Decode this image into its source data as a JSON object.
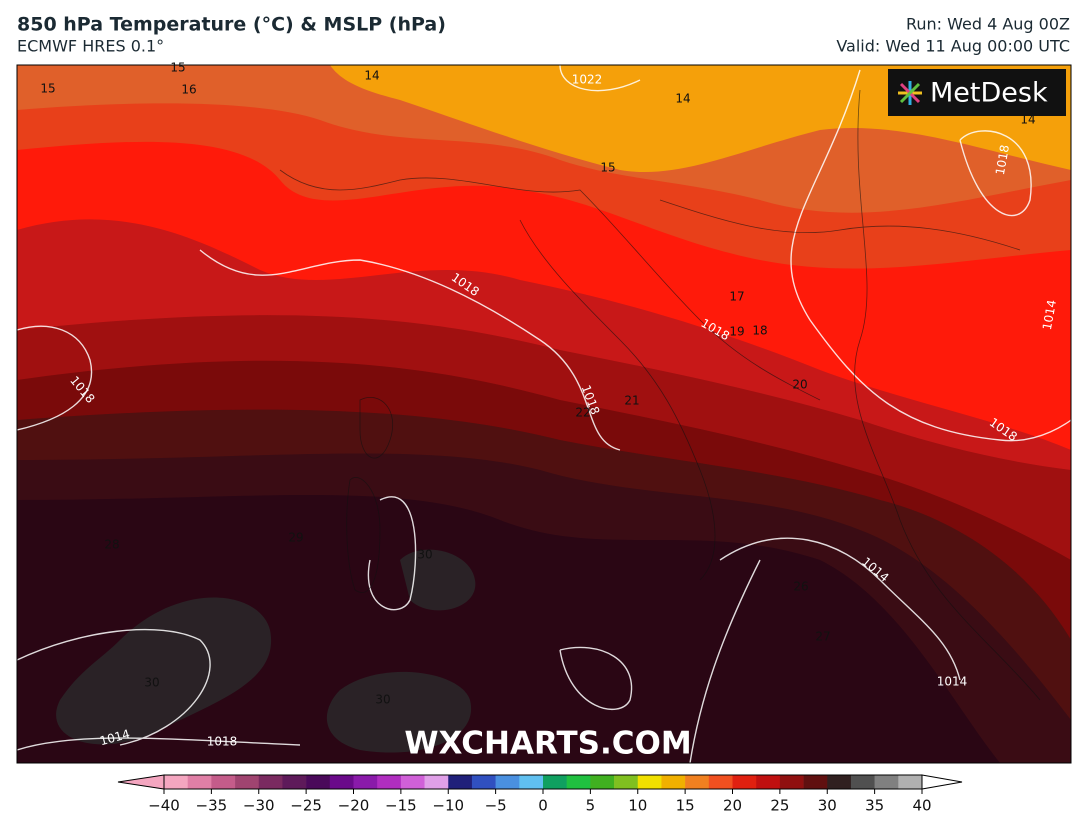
{
  "header": {
    "title": "850 hPa Temperature (°C) & MSLP (hPa)",
    "subtitle": "ECMWF HRES 0.1°",
    "run": "Run: Wed 4 Aug 00Z",
    "valid": "Valid: Wed 11 Aug 00:00 UTC"
  },
  "logo": "MetDesk",
  "watermark": "WXCHARTS.COM",
  "map": {
    "isobar_labels": [
      "1022",
      "1018",
      "1018",
      "1018",
      "1018",
      "1018",
      "1014",
      "1014",
      "1014",
      "1014",
      "1018",
      "1018"
    ],
    "isotherm_labels": [
      "15",
      "16",
      "15",
      "14",
      "14",
      "14",
      "15",
      "17",
      "19",
      "18",
      "21",
      "22",
      "20",
      "28",
      "29",
      "30",
      "26",
      "27",
      "30",
      "30"
    ]
  },
  "colorbar": {
    "min": -40,
    "max": 40,
    "colors": [
      "#f4a6c0",
      "#e07fa6",
      "#c45c8a",
      "#a04470",
      "#7a2a60",
      "#5e1a5a",
      "#4a0a5a",
      "#6a0a8a",
      "#8a1aaa",
      "#b02ec0",
      "#d060d8",
      "#e0a0e8",
      "#20207a",
      "#3050c0",
      "#4a90e0",
      "#60c0f0",
      "#10a060",
      "#20c040",
      "#40b020",
      "#80c020",
      "#f0e000",
      "#f0b000",
      "#f08020",
      "#f05020",
      "#e02010",
      "#c01010",
      "#901010",
      "#601010",
      "#302020",
      "#505050",
      "#808080",
      "#b0b0b0"
    ],
    "ticks": [
      {
        "value": -40,
        "label": "−40"
      },
      {
        "value": -35,
        "label": "−35"
      },
      {
        "value": -30,
        "label": "−30"
      },
      {
        "value": -25,
        "label": "−25"
      },
      {
        "value": -20,
        "label": "−20"
      },
      {
        "value": -15,
        "label": "−15"
      },
      {
        "value": -10,
        "label": "−10"
      },
      {
        "value": -5,
        "label": "−5"
      },
      0,
      5,
      10,
      15,
      20,
      25,
      30,
      35,
      40
    ]
  }
}
